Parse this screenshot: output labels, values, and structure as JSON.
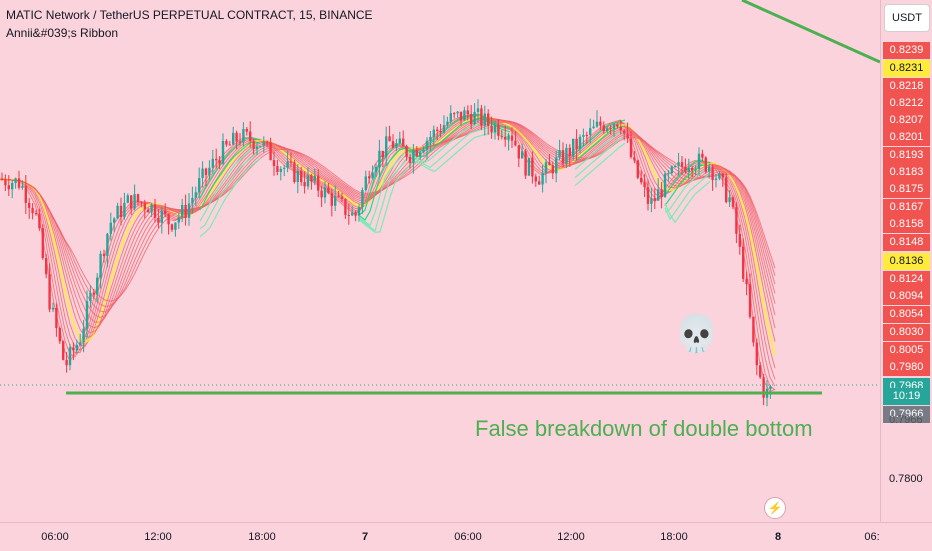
{
  "chart": {
    "title": "MATIC Network / TetherUS PERPETUAL CONTRACT, 15, BINANCE",
    "indicator": "Annii&#039;s Ribbon",
    "currency_button": "USDT",
    "annotation": "False breakdown of double bottom",
    "skull_icon": "💀",
    "bolt_icon": "⚡"
  },
  "price_axis": {
    "ticks": [
      "0.7966",
      "0.7800"
    ],
    "labels": [
      {
        "text": "0.8239",
        "color": "#f05350"
      },
      {
        "text": "0.8231",
        "color": "#ffeb3b"
      },
      {
        "text": "0.8218",
        "color": "#f05350"
      },
      {
        "text": "0.8212",
        "color": "#f05350"
      },
      {
        "text": "0.8207",
        "color": "#f05350"
      },
      {
        "text": "0.8201",
        "color": "#f05350"
      },
      {
        "text": "0.8193",
        "color": "#f05350"
      },
      {
        "text": "0.8183",
        "color": "#f05350"
      },
      {
        "text": "0.8175",
        "color": "#f05350"
      },
      {
        "text": "0.8167",
        "color": "#f05350"
      },
      {
        "text": "0.8158",
        "color": "#f05350"
      },
      {
        "text": "0.8148",
        "color": "#f05350"
      },
      {
        "text": "0.8136",
        "color": "#ffeb3b"
      },
      {
        "text": "0.8124",
        "color": "#f05350"
      },
      {
        "text": "0.8094",
        "color": "#f05350"
      },
      {
        "text": "0.8054",
        "color": "#f05350"
      },
      {
        "text": "0.8030",
        "color": "#f05350"
      },
      {
        "text": "0.8005",
        "color": "#f05350"
      },
      {
        "text": "0.7980",
        "color": "#f05350"
      },
      {
        "text": "0.7968",
        "color": "#26a69a"
      },
      {
        "text": "10:19",
        "color": "#26a69a"
      },
      {
        "text": "0.7966",
        "color": "#787b86"
      }
    ]
  },
  "time_axis": [
    "06:00",
    "12:00",
    "18:00",
    "7",
    "06:00",
    "12:00",
    "18:00",
    "8",
    "06:"
  ],
  "colors": {
    "up": "#26a69a",
    "down": "#f23645",
    "line": "#4caf50"
  }
}
